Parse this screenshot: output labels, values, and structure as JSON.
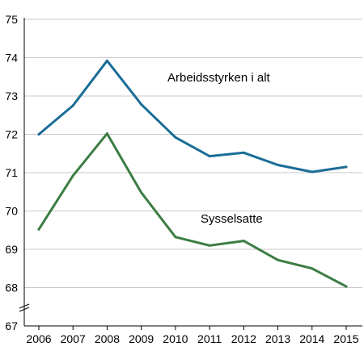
{
  "chart_data": {
    "type": "line",
    "x": [
      "2006",
      "2007",
      "2008",
      "2009",
      "2010",
      "2011",
      "2012",
      "2013",
      "2014",
      "2015"
    ],
    "ylim": [
      67,
      75
    ],
    "yticks": [
      "67",
      "68",
      "69",
      "70",
      "71",
      "72",
      "73",
      "74",
      "75"
    ],
    "grid": true,
    "axis_break": true,
    "series": [
      {
        "name": "Arbeidsstyrken i alt",
        "color": "#1a6d96",
        "values": [
          72.0,
          72.75,
          73.92,
          72.78,
          71.92,
          71.43,
          71.52,
          71.2,
          71.02,
          71.15
        ]
      },
      {
        "name": "Sysselsatte",
        "color": "#3c7d43",
        "values": [
          69.52,
          70.92,
          72.02,
          70.48,
          69.32,
          69.1,
          69.22,
          68.72,
          68.5,
          68.03
        ]
      }
    ]
  }
}
